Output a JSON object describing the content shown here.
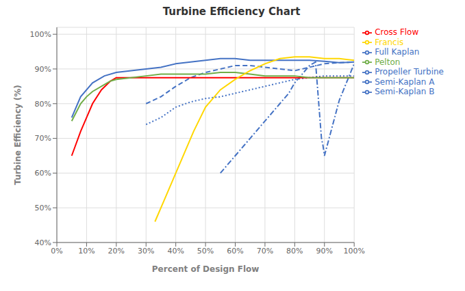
{
  "chart_data": {
    "type": "line",
    "title": "Turbine Efficiency Chart",
    "xlabel": "Percent of Design Flow",
    "ylabel": "Turbine Efficiency (%)",
    "xlim": [
      0,
      100
    ],
    "ylim": [
      40,
      102
    ],
    "xticks": [
      {
        "value": 0,
        "label": "0%"
      },
      {
        "value": 10,
        "label": "10%"
      },
      {
        "value": 20,
        "label": "20%"
      },
      {
        "value": 30,
        "label": "30%"
      },
      {
        "value": 40,
        "label": "40%"
      },
      {
        "value": 50,
        "label": "50%"
      },
      {
        "value": 60,
        "label": "60%"
      },
      {
        "value": 70,
        "label": "70%"
      },
      {
        "value": 80,
        "label": "80%"
      },
      {
        "value": 90,
        "label": "90%"
      },
      {
        "value": 100,
        "label": "100%"
      }
    ],
    "yticks": [
      {
        "value": 40,
        "label": "40%"
      },
      {
        "value": 50,
        "label": "50%"
      },
      {
        "value": 60,
        "label": "60%"
      },
      {
        "value": 70,
        "label": "70%"
      },
      {
        "value": 80,
        "label": "80%"
      },
      {
        "value": 90,
        "label": "90%"
      },
      {
        "value": 100,
        "label": "100%"
      }
    ],
    "grid": true,
    "legend": "right",
    "series": [
      {
        "name": "Full Kaplan",
        "color": "#4472c4",
        "line_style": "solid",
        "x": [
          5,
          8,
          12,
          16,
          20,
          25,
          30,
          35,
          40,
          45,
          50,
          55,
          60,
          65,
          70,
          75,
          80,
          85,
          90,
          95,
          100
        ],
        "values": [
          76,
          82,
          86,
          88,
          89,
          89.5,
          90,
          90.5,
          91.5,
          92,
          92.5,
          93,
          93,
          92.5,
          92.5,
          92.5,
          92.5,
          92.5,
          92.2,
          91.8,
          92
        ]
      },
      {
        "name": "Semi-Kaplan A",
        "color": "#4472c4",
        "line_style": "dashed",
        "x": [
          30,
          35,
          40,
          45,
          50,
          55,
          60,
          65,
          70,
          75,
          80,
          85,
          90,
          95,
          100
        ],
        "values": [
          80,
          82,
          85,
          87.5,
          89,
          90,
          91,
          91,
          90.5,
          90,
          89.5,
          90.5,
          91.5,
          91.8,
          92
        ]
      },
      {
        "name": "Semi-Kaplan B",
        "color": "#4472c4",
        "line_style": "dashdot",
        "x": [
          55,
          58,
          60,
          63,
          65,
          68,
          70,
          73,
          75,
          78,
          80,
          83,
          85,
          87,
          89,
          89.5,
          90,
          95,
          100
        ],
        "values": [
          60,
          63,
          65,
          68,
          70,
          73,
          75,
          78,
          80,
          83,
          86,
          89,
          91,
          92,
          70,
          68,
          65,
          81,
          91.5
        ]
      },
      {
        "name": "Propeller Turbine",
        "color": "#4472c4",
        "line_style": "dotted",
        "x": [
          30,
          35,
          40,
          45,
          50,
          55,
          60,
          65,
          70,
          75,
          80,
          85,
          90,
          95,
          100
        ],
        "values": [
          74,
          76,
          79,
          80.5,
          81.5,
          82,
          83,
          84,
          85,
          86,
          87,
          87.5,
          88,
          88,
          88
        ]
      },
      {
        "name": "Cross Flow",
        "color": "#ff0000",
        "line_style": "solid",
        "x": [
          5,
          8,
          10,
          12,
          15,
          18,
          20,
          25,
          30,
          40,
          50,
          60,
          70,
          80,
          90,
          100
        ],
        "values": [
          65,
          72,
          76,
          80,
          84,
          86.5,
          87.5,
          87.5,
          87.5,
          87.5,
          87.5,
          87.5,
          87.5,
          87.5,
          87.5,
          87.5
        ]
      },
      {
        "name": "Pelton",
        "color": "#70ad47",
        "line_style": "solid",
        "x": [
          5,
          8,
          10,
          12,
          15,
          18,
          20,
          25,
          30,
          35,
          40,
          45,
          50,
          55,
          60,
          65,
          70,
          75,
          80,
          85,
          90,
          95,
          100
        ],
        "values": [
          75,
          80,
          82,
          83.5,
          85,
          86.5,
          87,
          87.5,
          88,
          88.5,
          88.5,
          88.5,
          88.5,
          89,
          89,
          88.5,
          88,
          88,
          88,
          87.5,
          87.5,
          87.5,
          87.5
        ]
      },
      {
        "name": "Francis",
        "color": "#ffd700",
        "line_style": "solid",
        "x": [
          33,
          36,
          39,
          42,
          46,
          50,
          55,
          60,
          65,
          70,
          75,
          80,
          85,
          90,
          95,
          100
        ],
        "values": [
          46,
          52,
          58,
          64,
          72,
          79,
          84,
          87,
          89.5,
          91.5,
          93,
          93.5,
          93.5,
          93,
          93,
          92.5
        ]
      }
    ]
  }
}
